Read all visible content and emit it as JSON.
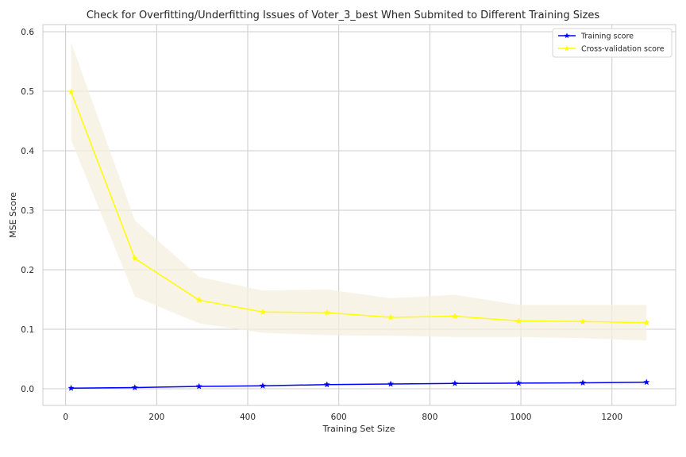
{
  "chart_data": {
    "type": "line",
    "title": "Check for Overfitting/Underfitting Issues of Voter_3_best When Submited to Different Training Sizes",
    "xlabel": "Training Set Size",
    "ylabel": "MSE Score",
    "xlim": [
      -50,
      1340
    ],
    "ylim": [
      -0.028,
      0.612
    ],
    "xticks": [
      0,
      200,
      400,
      600,
      800,
      1000,
      1200
    ],
    "yticks": [
      0.0,
      0.1,
      0.2,
      0.3,
      0.4,
      0.5,
      0.6
    ],
    "grid": true,
    "legend_position": "top-right",
    "x": [
      12,
      152,
      293,
      433,
      574,
      714,
      855,
      995,
      1136,
      1276
    ],
    "series": [
      {
        "name": "Training score",
        "color": "#0000ff",
        "marker": "star",
        "values": [
          0.001,
          0.002,
          0.004,
          0.005,
          0.007,
          0.008,
          0.009,
          0.0095,
          0.01,
          0.011
        ]
      },
      {
        "name": "Cross-validation score",
        "color": "#ffff00",
        "marker": "star",
        "values": [
          0.499,
          0.219,
          0.149,
          0.129,
          0.128,
          0.12,
          0.122,
          0.114,
          0.113,
          0.111
        ],
        "band_upper": [
          0.582,
          0.283,
          0.188,
          0.165,
          0.167,
          0.152,
          0.158,
          0.141,
          0.141,
          0.141
        ],
        "band_lower": [
          0.418,
          0.155,
          0.11,
          0.094,
          0.09,
          0.089,
          0.087,
          0.087,
          0.085,
          0.081
        ],
        "band_color": "#f5efdf"
      }
    ]
  }
}
